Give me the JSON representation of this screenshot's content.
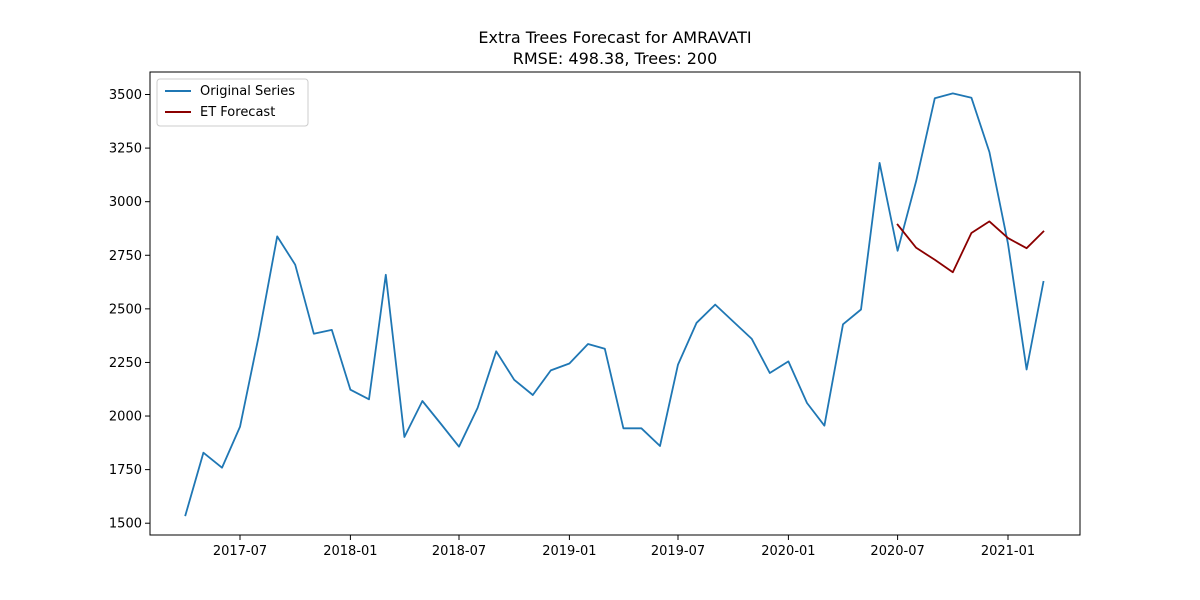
{
  "chart_data": {
    "type": "line",
    "title": "Extra Trees Forecast for AMRAVATI",
    "subtitle": "RMSE: 498.38, Trees: 200",
    "xlabel": "",
    "ylabel": "",
    "x_axis_type": "date",
    "xlim": [
      "2017-02-01",
      "2021-05-01"
    ],
    "ylim": [
      1445,
      3605
    ],
    "x_ticks": [
      {
        "value": "2017-07-01",
        "label": "2017-07"
      },
      {
        "value": "2018-01-01",
        "label": "2018-01"
      },
      {
        "value": "2018-07-01",
        "label": "2018-07"
      },
      {
        "value": "2019-01-01",
        "label": "2019-01"
      },
      {
        "value": "2019-07-01",
        "label": "2019-07"
      },
      {
        "value": "2020-01-01",
        "label": "2020-01"
      },
      {
        "value": "2020-07-01",
        "label": "2020-07"
      },
      {
        "value": "2021-01-01",
        "label": "2021-01"
      }
    ],
    "y_ticks": [
      1500,
      1750,
      2000,
      2250,
      2500,
      2750,
      3000,
      3250,
      3500
    ],
    "grid": false,
    "legend_position": "top-left",
    "series": [
      {
        "name": "Original Series",
        "color": "#1f77b4",
        "x": [
          "2017-04-01",
          "2017-05-01",
          "2017-06-01",
          "2017-07-01",
          "2017-08-01",
          "2017-09-01",
          "2017-10-01",
          "2017-11-01",
          "2017-12-01",
          "2018-01-01",
          "2018-02-01",
          "2018-03-01",
          "2018-04-01",
          "2018-05-01",
          "2018-06-01",
          "2018-07-01",
          "2018-08-01",
          "2018-09-01",
          "2018-10-01",
          "2018-11-01",
          "2018-12-01",
          "2019-01-01",
          "2019-02-01",
          "2019-03-01",
          "2019-04-01",
          "2019-05-01",
          "2019-06-01",
          "2019-07-01",
          "2019-08-01",
          "2019-09-01",
          "2019-10-01",
          "2019-11-01",
          "2019-12-01",
          "2020-01-01",
          "2020-02-01",
          "2020-03-01",
          "2020-04-01",
          "2020-05-01",
          "2020-06-01",
          "2020-07-01",
          "2020-08-01",
          "2020-09-01",
          "2020-10-01",
          "2020-11-01",
          "2020-12-01",
          "2021-01-01",
          "2021-02-01",
          "2021-03-01"
        ],
        "values": [
          1537,
          1829,
          1759,
          1950,
          2370,
          2838,
          2706,
          2384,
          2402,
          2123,
          2078,
          2659,
          1902,
          2070,
          1963,
          1857,
          2038,
          2302,
          2169,
          2098,
          2213,
          2245,
          2336,
          2314,
          1943,
          1943,
          1860,
          2240,
          2435,
          2520,
          2441,
          2360,
          2201,
          2255,
          2061,
          1955,
          2428,
          2497,
          3181,
          2771,
          3097,
          3483,
          3505,
          3485,
          3232,
          2804,
          2217,
          2626
        ]
      },
      {
        "name": "ET Forecast",
        "color": "#8b0000",
        "x": [
          "2020-07-01",
          "2020-08-01",
          "2020-09-01",
          "2020-10-01",
          "2020-11-01",
          "2020-12-01",
          "2021-01-01",
          "2021-02-01",
          "2021-03-01"
        ],
        "values": [
          2893,
          2785,
          2729,
          2671,
          2854,
          2908,
          2830,
          2783,
          2861
        ]
      }
    ]
  }
}
